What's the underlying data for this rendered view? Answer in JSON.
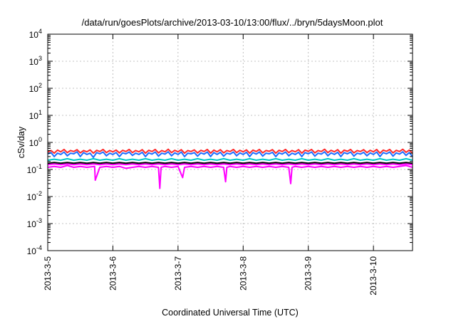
{
  "chart_data": {
    "type": "line",
    "title": "/data/run/goesPlots/archive/2013-03-10/13:00/flux/../bryn/5daysMoon.plot",
    "xlabel": "Coordinated Universal Time (UTC)",
    "ylabel": "cSv/day",
    "yscale": "log",
    "ylim": [
      0.0001,
      10000
    ],
    "xlim": [
      0,
      5.6
    ],
    "y_ticks": [
      {
        "value": 0.0001,
        "base": "10",
        "exp": "-4"
      },
      {
        "value": 0.001,
        "base": "10",
        "exp": "-3"
      },
      {
        "value": 0.01,
        "base": "10",
        "exp": "-2"
      },
      {
        "value": 0.1,
        "base": "10",
        "exp": "-1"
      },
      {
        "value": 1,
        "base": "10",
        "exp": "0"
      },
      {
        "value": 10,
        "base": "10",
        "exp": "1"
      },
      {
        "value": 100,
        "base": "10",
        "exp": "2"
      },
      {
        "value": 1000,
        "base": "10",
        "exp": "3"
      },
      {
        "value": 10000,
        "base": "10",
        "exp": "4"
      }
    ],
    "x_ticks": [
      {
        "value": 0,
        "label": "2013-3-5"
      },
      {
        "value": 1,
        "label": "2013-3-6"
      },
      {
        "value": 2,
        "label": "2013-3-7"
      },
      {
        "value": 3,
        "label": "2013-3-8"
      },
      {
        "value": 4,
        "label": "2013-3-9"
      },
      {
        "value": 5,
        "label": "2013-3-10"
      }
    ],
    "grid": true,
    "series": [
      {
        "color": "#ff00ff",
        "x": [
          0,
          0.1,
          0.2,
          0.3,
          0.4,
          0.5,
          0.6,
          0.72,
          0.73,
          0.8,
          0.9,
          1.0,
          1.1,
          1.2,
          1.3,
          1.4,
          1.5,
          1.6,
          1.7,
          1.72,
          1.74,
          1.8,
          1.9,
          2.0,
          2.07,
          2.1,
          2.2,
          2.3,
          2.4,
          2.5,
          2.6,
          2.7,
          2.73,
          2.75,
          2.8,
          2.9,
          3.0,
          3.1,
          3.2,
          3.3,
          3.4,
          3.5,
          3.6,
          3.7,
          3.73,
          3.75,
          3.8,
          3.9,
          4.0,
          4.1,
          4.2,
          4.3,
          4.4,
          4.5,
          4.6,
          4.7,
          4.8,
          4.9,
          5.0,
          5.1,
          5.2,
          5.3,
          5.4,
          5.5,
          5.6
        ],
        "values": [
          0.12,
          0.13,
          0.12,
          0.14,
          0.12,
          0.13,
          0.12,
          0.13,
          0.04,
          0.12,
          0.13,
          0.12,
          0.13,
          0.11,
          0.12,
          0.13,
          0.12,
          0.13,
          0.12,
          0.02,
          0.12,
          0.13,
          0.12,
          0.13,
          0.05,
          0.12,
          0.13,
          0.12,
          0.13,
          0.12,
          0.13,
          0.12,
          0.035,
          0.12,
          0.13,
          0.12,
          0.13,
          0.12,
          0.13,
          0.12,
          0.13,
          0.12,
          0.13,
          0.12,
          0.03,
          0.12,
          0.13,
          0.12,
          0.13,
          0.12,
          0.13,
          0.12,
          0.13,
          0.12,
          0.13,
          0.12,
          0.13,
          0.12,
          0.13,
          0.12,
          0.13,
          0.12,
          0.13,
          0.14,
          0.12
        ]
      },
      {
        "color": "#ff00ff",
        "x": [
          0,
          0.1,
          0.2,
          0.3,
          0.4,
          0.5,
          0.6,
          0.7,
          0.8,
          0.9,
          1.0,
          1.1,
          1.2,
          1.3,
          1.4,
          1.5,
          1.6,
          1.7,
          1.8,
          1.9,
          2.0,
          2.1,
          2.2,
          2.3,
          2.4,
          2.5,
          2.6,
          2.7,
          2.8,
          2.9,
          3.0,
          3.1,
          3.2,
          3.3,
          3.4,
          3.5,
          3.6,
          3.7,
          3.8,
          3.9,
          4.0,
          4.1,
          4.2,
          4.3,
          4.4,
          4.5,
          4.6,
          4.7,
          4.8,
          4.9,
          5.0,
          5.1,
          5.2,
          5.3,
          5.4,
          5.5,
          5.6
        ],
        "values": [
          0.15,
          0.16,
          0.15,
          0.16,
          0.15,
          0.16,
          0.15,
          0.16,
          0.15,
          0.16,
          0.15,
          0.16,
          0.15,
          0.16,
          0.15,
          0.16,
          0.15,
          0.16,
          0.15,
          0.16,
          0.15,
          0.16,
          0.15,
          0.16,
          0.15,
          0.16,
          0.15,
          0.16,
          0.15,
          0.16,
          0.15,
          0.16,
          0.15,
          0.16,
          0.15,
          0.16,
          0.15,
          0.16,
          0.15,
          0.16,
          0.15,
          0.16,
          0.15,
          0.16,
          0.15,
          0.16,
          0.15,
          0.16,
          0.15,
          0.16,
          0.15,
          0.16,
          0.15,
          0.16,
          0.15,
          0.16,
          0.15
        ]
      },
      {
        "color": "#000000",
        "x": [
          0,
          0.1,
          0.2,
          0.3,
          0.4,
          0.5,
          0.6,
          0.7,
          0.8,
          0.9,
          1.0,
          1.1,
          1.2,
          1.3,
          1.4,
          1.5,
          1.6,
          1.7,
          1.8,
          1.9,
          2.0,
          2.1,
          2.2,
          2.3,
          2.4,
          2.5,
          2.6,
          2.7,
          2.8,
          2.9,
          3.0,
          3.1,
          3.2,
          3.3,
          3.4,
          3.5,
          3.6,
          3.7,
          3.8,
          3.9,
          4.0,
          4.1,
          4.2,
          4.3,
          4.4,
          4.5,
          4.6,
          4.7,
          4.8,
          4.9,
          5.0,
          5.1,
          5.2,
          5.3,
          5.4,
          5.5,
          5.6
        ],
        "values": [
          0.17,
          0.18,
          0.17,
          0.18,
          0.17,
          0.18,
          0.17,
          0.18,
          0.17,
          0.18,
          0.17,
          0.18,
          0.17,
          0.18,
          0.17,
          0.18,
          0.17,
          0.18,
          0.17,
          0.18,
          0.17,
          0.18,
          0.17,
          0.18,
          0.17,
          0.18,
          0.17,
          0.18,
          0.17,
          0.18,
          0.17,
          0.18,
          0.17,
          0.18,
          0.17,
          0.18,
          0.17,
          0.18,
          0.17,
          0.18,
          0.17,
          0.18,
          0.17,
          0.18,
          0.17,
          0.18,
          0.17,
          0.18,
          0.17,
          0.18,
          0.17,
          0.18,
          0.17,
          0.18,
          0.17,
          0.18,
          0.17
        ]
      },
      {
        "color": "#00c8c8",
        "x": [
          0,
          0.1,
          0.2,
          0.3,
          0.4,
          0.5,
          0.6,
          0.7,
          0.8,
          0.9,
          1.0,
          1.1,
          1.2,
          1.3,
          1.4,
          1.5,
          1.6,
          1.7,
          1.8,
          1.9,
          2.0,
          2.1,
          2.2,
          2.3,
          2.4,
          2.5,
          2.6,
          2.7,
          2.8,
          2.9,
          3.0,
          3.1,
          3.2,
          3.3,
          3.4,
          3.5,
          3.6,
          3.7,
          3.8,
          3.9,
          4.0,
          4.1,
          4.2,
          4.3,
          4.4,
          4.5,
          4.6,
          4.7,
          4.8,
          4.9,
          5.0,
          5.1,
          5.2,
          5.3,
          5.4,
          5.5,
          5.6
        ],
        "values": [
          0.22,
          0.24,
          0.22,
          0.25,
          0.22,
          0.24,
          0.22,
          0.25,
          0.22,
          0.24,
          0.22,
          0.25,
          0.22,
          0.24,
          0.22,
          0.25,
          0.22,
          0.24,
          0.22,
          0.25,
          0.22,
          0.24,
          0.22,
          0.25,
          0.22,
          0.24,
          0.22,
          0.25,
          0.22,
          0.24,
          0.22,
          0.25,
          0.22,
          0.24,
          0.22,
          0.25,
          0.22,
          0.24,
          0.22,
          0.25,
          0.22,
          0.24,
          0.22,
          0.25,
          0.22,
          0.24,
          0.22,
          0.25,
          0.22,
          0.24,
          0.22,
          0.25,
          0.22,
          0.24,
          0.22,
          0.25,
          0.22
        ]
      },
      {
        "color": "#1e6eff",
        "x": [
          0,
          0.05,
          0.1,
          0.15,
          0.2,
          0.25,
          0.3,
          0.35,
          0.4,
          0.45,
          0.5,
          0.55,
          0.6,
          0.65,
          0.7,
          0.75,
          0.8,
          0.85,
          0.9,
          0.95,
          1.0,
          1.05,
          1.1,
          1.15,
          1.2,
          1.25,
          1.3,
          1.35,
          1.4,
          1.45,
          1.5,
          1.55,
          1.6,
          1.65,
          1.7,
          1.75,
          1.8,
          1.85,
          1.9,
          1.95,
          2.0,
          2.05,
          2.1,
          2.15,
          2.2,
          2.25,
          2.3,
          2.35,
          2.4,
          2.45,
          2.5,
          2.55,
          2.6,
          2.65,
          2.7,
          2.75,
          2.8,
          2.85,
          2.9,
          2.95,
          3.0,
          3.05,
          3.1,
          3.15,
          3.2,
          3.25,
          3.3,
          3.35,
          3.4,
          3.45,
          3.5,
          3.55,
          3.6,
          3.65,
          3.7,
          3.75,
          3.8,
          3.85,
          3.9,
          3.95,
          4.0,
          4.05,
          4.1,
          4.15,
          4.2,
          4.25,
          4.3,
          4.35,
          4.4,
          4.45,
          4.5,
          4.55,
          4.6,
          4.65,
          4.7,
          4.75,
          4.8,
          4.85,
          4.9,
          4.95,
          5.0,
          5.05,
          5.1,
          5.15,
          5.2,
          5.25,
          5.3,
          5.35,
          5.4,
          5.45,
          5.5,
          5.55,
          5.6
        ],
        "values": [
          0.38,
          0.42,
          0.3,
          0.4,
          0.36,
          0.44,
          0.32,
          0.4,
          0.38,
          0.45,
          0.3,
          0.42,
          0.36,
          0.4,
          0.28,
          0.42,
          0.38,
          0.44,
          0.32,
          0.4,
          0.36,
          0.42,
          0.3,
          0.41,
          0.38,
          0.44,
          0.33,
          0.4,
          0.36,
          0.43,
          0.3,
          0.41,
          0.37,
          0.44,
          0.31,
          0.4,
          0.37,
          0.45,
          0.32,
          0.41,
          0.36,
          0.44,
          0.3,
          0.4,
          0.38,
          0.42,
          0.31,
          0.41,
          0.37,
          0.44,
          0.3,
          0.42,
          0.36,
          0.43,
          0.31,
          0.4,
          0.37,
          0.44,
          0.32,
          0.41,
          0.36,
          0.43,
          0.3,
          0.42,
          0.37,
          0.44,
          0.31,
          0.4,
          0.38,
          0.43,
          0.3,
          0.41,
          0.37,
          0.44,
          0.32,
          0.4,
          0.36,
          0.43,
          0.3,
          0.42,
          0.38,
          0.44,
          0.31,
          0.4,
          0.37,
          0.45,
          0.32,
          0.41,
          0.36,
          0.43,
          0.3,
          0.42,
          0.38,
          0.44,
          0.31,
          0.4,
          0.37,
          0.43,
          0.32,
          0.41,
          0.36,
          0.44,
          0.3,
          0.42,
          0.38,
          0.44,
          0.31,
          0.41,
          0.37,
          0.45,
          0.33,
          0.42,
          0.3
        ]
      },
      {
        "color": "#ff2a2a",
        "x": [
          0,
          0.05,
          0.1,
          0.15,
          0.2,
          0.25,
          0.3,
          0.35,
          0.4,
          0.45,
          0.5,
          0.55,
          0.6,
          0.65,
          0.7,
          0.75,
          0.8,
          0.85,
          0.9,
          0.95,
          1.0,
          1.05,
          1.1,
          1.15,
          1.2,
          1.25,
          1.3,
          1.35,
          1.4,
          1.45,
          1.5,
          1.55,
          1.6,
          1.65,
          1.7,
          1.75,
          1.8,
          1.85,
          1.9,
          1.95,
          2.0,
          2.05,
          2.1,
          2.15,
          2.2,
          2.25,
          2.3,
          2.35,
          2.4,
          2.45,
          2.5,
          2.55,
          2.6,
          2.65,
          2.7,
          2.75,
          2.8,
          2.85,
          2.9,
          2.95,
          3.0,
          3.05,
          3.1,
          3.15,
          3.2,
          3.25,
          3.3,
          3.35,
          3.4,
          3.45,
          3.5,
          3.55,
          3.6,
          3.65,
          3.7,
          3.75,
          3.8,
          3.85,
          3.9,
          3.95,
          4.0,
          4.05,
          4.1,
          4.15,
          4.2,
          4.25,
          4.3,
          4.35,
          4.4,
          4.45,
          4.5,
          4.55,
          4.6,
          4.65,
          4.7,
          4.75,
          4.8,
          4.85,
          4.9,
          4.95,
          5.0,
          5.05,
          5.1,
          5.15,
          5.2,
          5.25,
          5.3,
          5.35,
          5.4,
          5.45,
          5.5,
          5.55,
          5.6
        ],
        "values": [
          0.44,
          0.5,
          0.4,
          0.52,
          0.45,
          0.55,
          0.42,
          0.5,
          0.46,
          0.54,
          0.41,
          0.5,
          0.45,
          0.53,
          0.4,
          0.51,
          0.46,
          0.55,
          0.42,
          0.5,
          0.45,
          0.52,
          0.41,
          0.51,
          0.46,
          0.55,
          0.42,
          0.5,
          0.45,
          0.54,
          0.4,
          0.51,
          0.46,
          0.55,
          0.41,
          0.5,
          0.45,
          0.56,
          0.42,
          0.51,
          0.45,
          0.54,
          0.4,
          0.5,
          0.46,
          0.53,
          0.41,
          0.51,
          0.46,
          0.55,
          0.4,
          0.52,
          0.45,
          0.54,
          0.41,
          0.5,
          0.46,
          0.55,
          0.42,
          0.51,
          0.45,
          0.53,
          0.4,
          0.52,
          0.46,
          0.55,
          0.41,
          0.5,
          0.47,
          0.54,
          0.4,
          0.51,
          0.46,
          0.55,
          0.42,
          0.5,
          0.45,
          0.54,
          0.4,
          0.52,
          0.47,
          0.55,
          0.41,
          0.5,
          0.46,
          0.56,
          0.42,
          0.51,
          0.45,
          0.54,
          0.4,
          0.52,
          0.47,
          0.55,
          0.41,
          0.5,
          0.46,
          0.54,
          0.42,
          0.51,
          0.45,
          0.55,
          0.4,
          0.52,
          0.47,
          0.55,
          0.41,
          0.51,
          0.46,
          0.56,
          0.43,
          0.52,
          0.4
        ]
      }
    ]
  }
}
